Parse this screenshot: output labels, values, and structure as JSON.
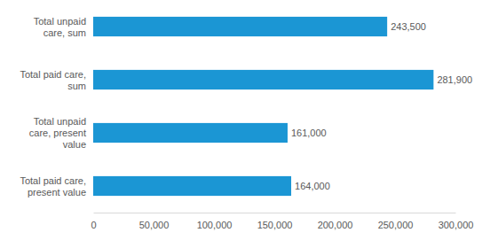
{
  "chart_data": {
    "type": "bar",
    "orientation": "horizontal",
    "categories": [
      "Total unpaid care, sum",
      "Total paid care, sum",
      "Total unpaid care, present value",
      "Total paid care, present value"
    ],
    "values": [
      243500,
      281900,
      161000,
      164000
    ],
    "value_labels": [
      "243,500",
      "281,900",
      "161,000",
      "164,000"
    ],
    "color": "#1b96d4",
    "xlim": [
      0,
      300000
    ],
    "xticks": [
      0,
      {
        "value": 50000,
        "label": "50,000"
      },
      {
        "value": 100000,
        "label": "100,000"
      },
      {
        "value": 150000,
        "label": "150,000"
      },
      {
        "value": 200000,
        "label": "200,000"
      },
      {
        "value": 250000,
        "label": "250,000"
      },
      {
        "value": 300000,
        "label": "300,000"
      }
    ],
    "grid": false,
    "data_labels": true
  }
}
